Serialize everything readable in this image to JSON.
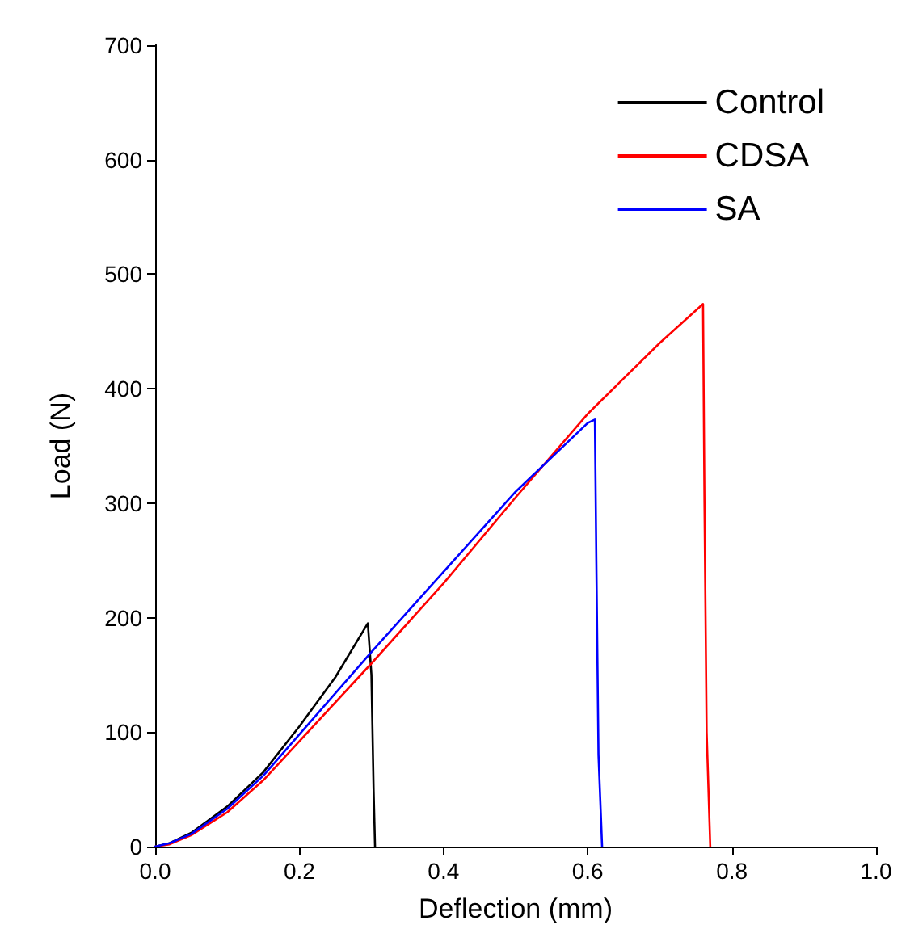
{
  "chart_data": {
    "type": "line",
    "xlabel": "Deflection (mm)",
    "ylabel": "Load (N)",
    "xlim": [
      0,
      1
    ],
    "ylim": [
      0,
      700
    ],
    "xticks": [
      {
        "value": 0,
        "label": "0.0"
      },
      0.2,
      0.4,
      0.6,
      0.8,
      {
        "value": 1,
        "label": "1.0"
      }
    ],
    "yticks": [
      0,
      100,
      200,
      300,
      400,
      500,
      600,
      700
    ],
    "grid": false,
    "legend": "top right",
    "marker": "none",
    "line_style": "solid",
    "series": [
      {
        "name": "Control",
        "color": "#000000",
        "x": [
          0,
          0.02,
          0.05,
          0.1,
          0.15,
          0.2,
          0.25,
          0.295,
          0.3,
          0.303,
          0.305
        ],
        "values": [
          0,
          3,
          12,
          35,
          65,
          105,
          148,
          195,
          150,
          50,
          0
        ]
      },
      {
        "name": "CDSA",
        "color": "#ff0000",
        "x": [
          0,
          0.02,
          0.05,
          0.1,
          0.15,
          0.2,
          0.3,
          0.4,
          0.5,
          0.6,
          0.7,
          0.76,
          0.762,
          0.765,
          0.77
        ],
        "values": [
          0,
          2,
          10,
          30,
          58,
          92,
          160,
          230,
          305,
          378,
          440,
          474,
          300,
          100,
          0
        ]
      },
      {
        "name": "SA",
        "color": "#0000ff",
        "x": [
          0,
          0.02,
          0.05,
          0.1,
          0.15,
          0.2,
          0.3,
          0.4,
          0.5,
          0.6,
          0.61,
          0.612,
          0.615,
          0.62
        ],
        "values": [
          0,
          3,
          11,
          33,
          62,
          98,
          170,
          240,
          310,
          370,
          373,
          250,
          80,
          0
        ]
      }
    ]
  }
}
